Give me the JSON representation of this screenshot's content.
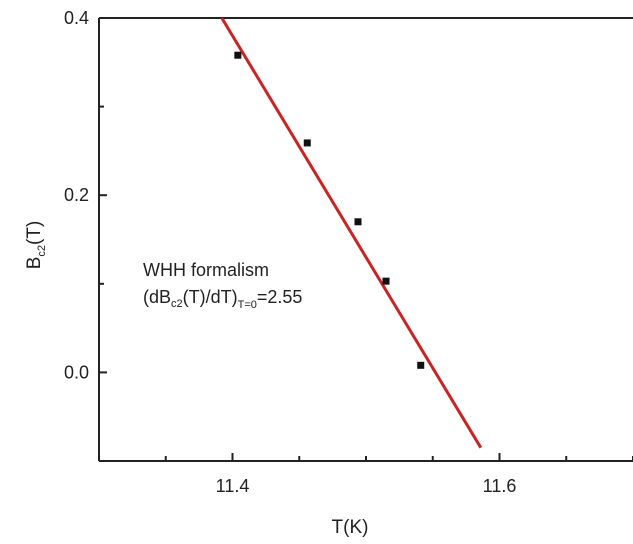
{
  "chart_data": {
    "type": "scatter",
    "xlabel": {
      "main": "T(K)"
    },
    "ylabel": {
      "main": "B",
      "sub": "c2",
      "tail": "(T)"
    },
    "xlim": [
      11.3,
      11.7
    ],
    "ylim": [
      -0.1,
      0.4
    ],
    "x_ticks": [
      {
        "value": 11.4,
        "label": "11.4"
      },
      {
        "value": 11.6,
        "label": "11.6"
      }
    ],
    "y_ticks": [
      {
        "value": 0.0,
        "label": "0.0"
      },
      {
        "value": 0.2,
        "label": "0.2"
      },
      {
        "value": 0.4,
        "label": "0.4"
      }
    ],
    "x_minor_step": 0.05,
    "y_minor_step": 0.1,
    "points": [
      {
        "x": 11.404,
        "y": 0.358
      },
      {
        "x": 11.456,
        "y": 0.259
      },
      {
        "x": 11.494,
        "y": 0.17
      },
      {
        "x": 11.515,
        "y": 0.103
      },
      {
        "x": 11.541,
        "y": 0.008
      }
    ],
    "fit_line": {
      "x": [
        11.392,
        11.586
      ],
      "y": [
        0.4,
        -0.085
      ]
    },
    "colors": {
      "line": "#cc2222",
      "points": "#111111",
      "axes": "#222222"
    },
    "annotation": {
      "line1": "WHH formalism",
      "line2_a": "(dB",
      "line2_sub1": "c2",
      "line2_b": "(T)/dT)",
      "line2_sub2": "T=0",
      "line2_c": "=2.55"
    }
  }
}
